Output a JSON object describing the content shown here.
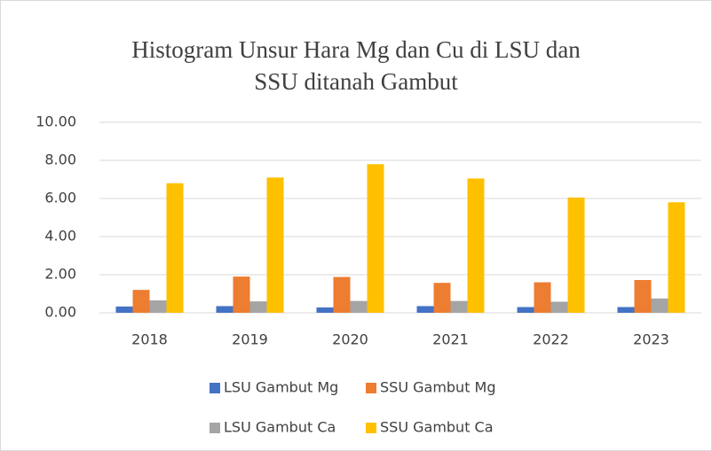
{
  "chart_data": {
    "type": "bar",
    "title": "Histogram Unsur Hara Mg dan Cu di LSU dan SSU ditanah Gambut",
    "categories": [
      "2018",
      "2019",
      "2020",
      "2021",
      "2022",
      "2023"
    ],
    "series": [
      {
        "name": "LSU Gambut Mg",
        "color": "#4472c4",
        "values": [
          0.33,
          0.35,
          0.28,
          0.35,
          0.3,
          0.3
        ]
      },
      {
        "name": "SSU Gambut Mg",
        "color": "#ed7d31",
        "values": [
          1.2,
          1.9,
          1.88,
          1.57,
          1.6,
          1.72
        ]
      },
      {
        "name": "LSU Gambut Ca",
        "color": "#a5a5a5",
        "values": [
          0.65,
          0.6,
          0.62,
          0.62,
          0.58,
          0.75
        ]
      },
      {
        "name": "SSU Gambut Ca",
        "color": "#ffc000",
        "values": [
          6.8,
          7.1,
          7.8,
          7.05,
          6.05,
          5.8
        ]
      }
    ],
    "ylim": [
      0,
      10
    ],
    "yticks": [
      {
        "value": 0,
        "label": "0.00"
      },
      {
        "value": 2,
        "label": "2.00"
      },
      {
        "value": 4,
        "label": "4.00"
      },
      {
        "value": 6,
        "label": "6.00"
      },
      {
        "value": 8,
        "label": "8.00"
      },
      {
        "value": 10,
        "label": "10.00"
      }
    ],
    "grid": true,
    "legend": "bottom"
  }
}
